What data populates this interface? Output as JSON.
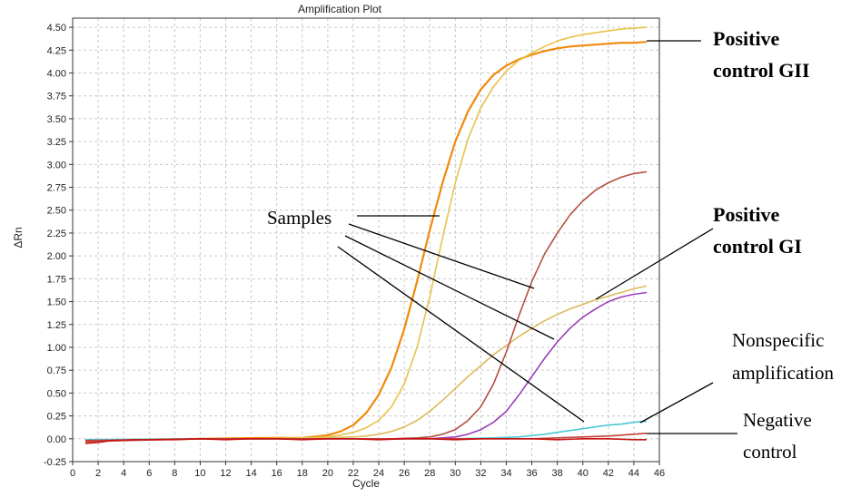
{
  "chart_data": {
    "type": "line",
    "title": "Amplification Plot",
    "xlabel": "Cycle",
    "ylabel": "ΔRn",
    "xlim": [
      0,
      46
    ],
    "ylim": [
      -0.25,
      4.6
    ],
    "xticks": [
      0,
      2,
      4,
      6,
      8,
      10,
      12,
      14,
      16,
      18,
      20,
      22,
      24,
      26,
      28,
      30,
      32,
      34,
      36,
      38,
      40,
      42,
      44,
      46
    ],
    "yticks": [
      -0.25,
      0.0,
      0.25,
      0.5,
      0.75,
      1.0,
      1.25,
      1.5,
      1.75,
      2.0,
      2.25,
      2.5,
      2.75,
      3.0,
      3.25,
      3.5,
      3.75,
      4.0,
      4.25,
      4.5
    ],
    "ytick_labels": [
      "-0.25",
      "0.00",
      "0.25",
      "0.50",
      "0.75",
      "1.00",
      "1.25",
      "1.50",
      "1.75",
      "2.00",
      "2.25",
      "2.50",
      "2.75",
      "3.00",
      "3.25",
      "3.50",
      "3.75",
      "4.00",
      "4.25",
      "4.50"
    ],
    "grid": true,
    "series": [
      {
        "color": "#f08a0c",
        "points": [
          [
            1,
            -0.03
          ],
          [
            5,
            -0.01
          ],
          [
            10,
            0.0
          ],
          [
            15,
            0.01
          ],
          [
            18,
            0.01
          ],
          [
            20,
            0.04
          ],
          [
            21,
            0.08
          ],
          [
            22,
            0.15
          ],
          [
            23,
            0.28
          ],
          [
            24,
            0.48
          ],
          [
            25,
            0.78
          ],
          [
            26,
            1.2
          ],
          [
            27,
            1.72
          ],
          [
            28,
            2.28
          ],
          [
            29,
            2.8
          ],
          [
            30,
            3.25
          ],
          [
            31,
            3.58
          ],
          [
            32,
            3.82
          ],
          [
            33,
            3.98
          ],
          [
            34,
            4.08
          ],
          [
            35,
            4.15
          ],
          [
            36,
            4.2
          ],
          [
            37,
            4.24
          ],
          [
            38,
            4.27
          ],
          [
            39,
            4.29
          ],
          [
            40,
            4.3
          ],
          [
            41,
            4.31
          ],
          [
            42,
            4.32
          ],
          [
            43,
            4.33
          ],
          [
            44,
            4.33
          ],
          [
            45,
            4.34
          ]
        ]
      },
      {
        "color": "#e8c24a",
        "points": [
          [
            1,
            -0.02
          ],
          [
            5,
            -0.01
          ],
          [
            10,
            0.0
          ],
          [
            15,
            0.0
          ],
          [
            18,
            0.01
          ],
          [
            20,
            0.02
          ],
          [
            21,
            0.04
          ],
          [
            22,
            0.07
          ],
          [
            23,
            0.12
          ],
          [
            24,
            0.2
          ],
          [
            25,
            0.35
          ],
          [
            26,
            0.6
          ],
          [
            27,
            1.0
          ],
          [
            28,
            1.55
          ],
          [
            29,
            2.2
          ],
          [
            30,
            2.8
          ],
          [
            31,
            3.28
          ],
          [
            32,
            3.62
          ],
          [
            33,
            3.85
          ],
          [
            34,
            4.02
          ],
          [
            35,
            4.14
          ],
          [
            36,
            4.22
          ],
          [
            37,
            4.29
          ],
          [
            38,
            4.35
          ],
          [
            39,
            4.39
          ],
          [
            40,
            4.42
          ],
          [
            41,
            4.44
          ],
          [
            42,
            4.46
          ],
          [
            43,
            4.48
          ],
          [
            44,
            4.49
          ],
          [
            45,
            4.5
          ]
        ]
      },
      {
        "color": "#ddb95a",
        "points": [
          [
            1,
            -0.02
          ],
          [
            10,
            0.0
          ],
          [
            18,
            0.0
          ],
          [
            20,
            0.01
          ],
          [
            22,
            0.02
          ],
          [
            23,
            0.03
          ],
          [
            24,
            0.05
          ],
          [
            25,
            0.08
          ],
          [
            26,
            0.13
          ],
          [
            27,
            0.2
          ],
          [
            28,
            0.3
          ],
          [
            29,
            0.42
          ],
          [
            30,
            0.55
          ],
          [
            31,
            0.68
          ],
          [
            32,
            0.8
          ],
          [
            33,
            0.92
          ],
          [
            34,
            1.02
          ],
          [
            35,
            1.12
          ],
          [
            36,
            1.21
          ],
          [
            37,
            1.29
          ],
          [
            38,
            1.36
          ],
          [
            39,
            1.42
          ],
          [
            40,
            1.47
          ],
          [
            41,
            1.52
          ],
          [
            42,
            1.56
          ],
          [
            43,
            1.6
          ],
          [
            44,
            1.64
          ],
          [
            45,
            1.67
          ]
        ]
      },
      {
        "color": "#b5503f",
        "points": [
          [
            1,
            -0.03
          ],
          [
            10,
            0.0
          ],
          [
            20,
            0.0
          ],
          [
            25,
            0.0
          ],
          [
            27,
            0.01
          ],
          [
            28,
            0.02
          ],
          [
            29,
            0.05
          ],
          [
            30,
            0.1
          ],
          [
            31,
            0.2
          ],
          [
            32,
            0.35
          ],
          [
            33,
            0.6
          ],
          [
            34,
            0.95
          ],
          [
            35,
            1.35
          ],
          [
            36,
            1.72
          ],
          [
            37,
            2.02
          ],
          [
            38,
            2.25
          ],
          [
            39,
            2.45
          ],
          [
            40,
            2.6
          ],
          [
            41,
            2.72
          ],
          [
            42,
            2.8
          ],
          [
            43,
            2.86
          ],
          [
            44,
            2.9
          ],
          [
            45,
            2.92
          ]
        ]
      },
      {
        "color": "#9a3fb5",
        "points": [
          [
            1,
            -0.02
          ],
          [
            10,
            0.0
          ],
          [
            20,
            0.0
          ],
          [
            28,
            0.0
          ],
          [
            29,
            0.01
          ],
          [
            30,
            0.02
          ],
          [
            31,
            0.05
          ],
          [
            32,
            0.1
          ],
          [
            33,
            0.18
          ],
          [
            34,
            0.3
          ],
          [
            35,
            0.48
          ],
          [
            36,
            0.68
          ],
          [
            37,
            0.88
          ],
          [
            38,
            1.06
          ],
          [
            39,
            1.21
          ],
          [
            40,
            1.33
          ],
          [
            41,
            1.42
          ],
          [
            42,
            1.5
          ],
          [
            43,
            1.55
          ],
          [
            44,
            1.58
          ],
          [
            45,
            1.6
          ]
        ]
      },
      {
        "color": "#4cc8d4",
        "points": [
          [
            1,
            -0.01
          ],
          [
            10,
            0.0
          ],
          [
            20,
            0.0
          ],
          [
            30,
            0.0
          ],
          [
            33,
            0.01
          ],
          [
            35,
            0.02
          ],
          [
            37,
            0.05
          ],
          [
            38,
            0.07
          ],
          [
            39,
            0.09
          ],
          [
            40,
            0.11
          ],
          [
            41,
            0.13
          ],
          [
            42,
            0.15
          ],
          [
            43,
            0.16
          ],
          [
            44,
            0.18
          ],
          [
            45,
            0.19
          ]
        ]
      },
      {
        "color": "#c0403a",
        "points": [
          [
            1,
            -0.02
          ],
          [
            10,
            0.0
          ],
          [
            20,
            0.0
          ],
          [
            30,
            0.0
          ],
          [
            36,
            0.0
          ],
          [
            38,
            0.01
          ],
          [
            40,
            0.02
          ],
          [
            42,
            0.03
          ],
          [
            44,
            0.05
          ],
          [
            45,
            0.06
          ]
        ]
      },
      {
        "color": "#c81414",
        "points": [
          [
            1,
            -0.05
          ],
          [
            2,
            -0.04
          ],
          [
            3,
            -0.02
          ],
          [
            5,
            -0.01
          ],
          [
            8,
            -0.01
          ],
          [
            10,
            0.0
          ],
          [
            12,
            -0.01
          ],
          [
            14,
            0.0
          ],
          [
            16,
            0.0
          ],
          [
            18,
            -0.01
          ],
          [
            20,
            0.0
          ],
          [
            22,
            0.0
          ],
          [
            24,
            -0.01
          ],
          [
            26,
            0.0
          ],
          [
            28,
            0.0
          ],
          [
            30,
            -0.01
          ],
          [
            32,
            0.0
          ],
          [
            34,
            0.0
          ],
          [
            36,
            0.0
          ],
          [
            38,
            -0.01
          ],
          [
            40,
            0.0
          ],
          [
            42,
            0.0
          ],
          [
            44,
            -0.01
          ],
          [
            45,
            -0.01
          ]
        ]
      }
    ]
  },
  "annotations": {
    "positive_gii": [
      "Positive",
      "control GII"
    ],
    "samples": "Samples",
    "positive_gi": [
      "Positive",
      "control GI"
    ],
    "nonspecific": [
      "Nonspecific",
      "amplification"
    ],
    "negative": [
      "Negative",
      "control"
    ]
  }
}
